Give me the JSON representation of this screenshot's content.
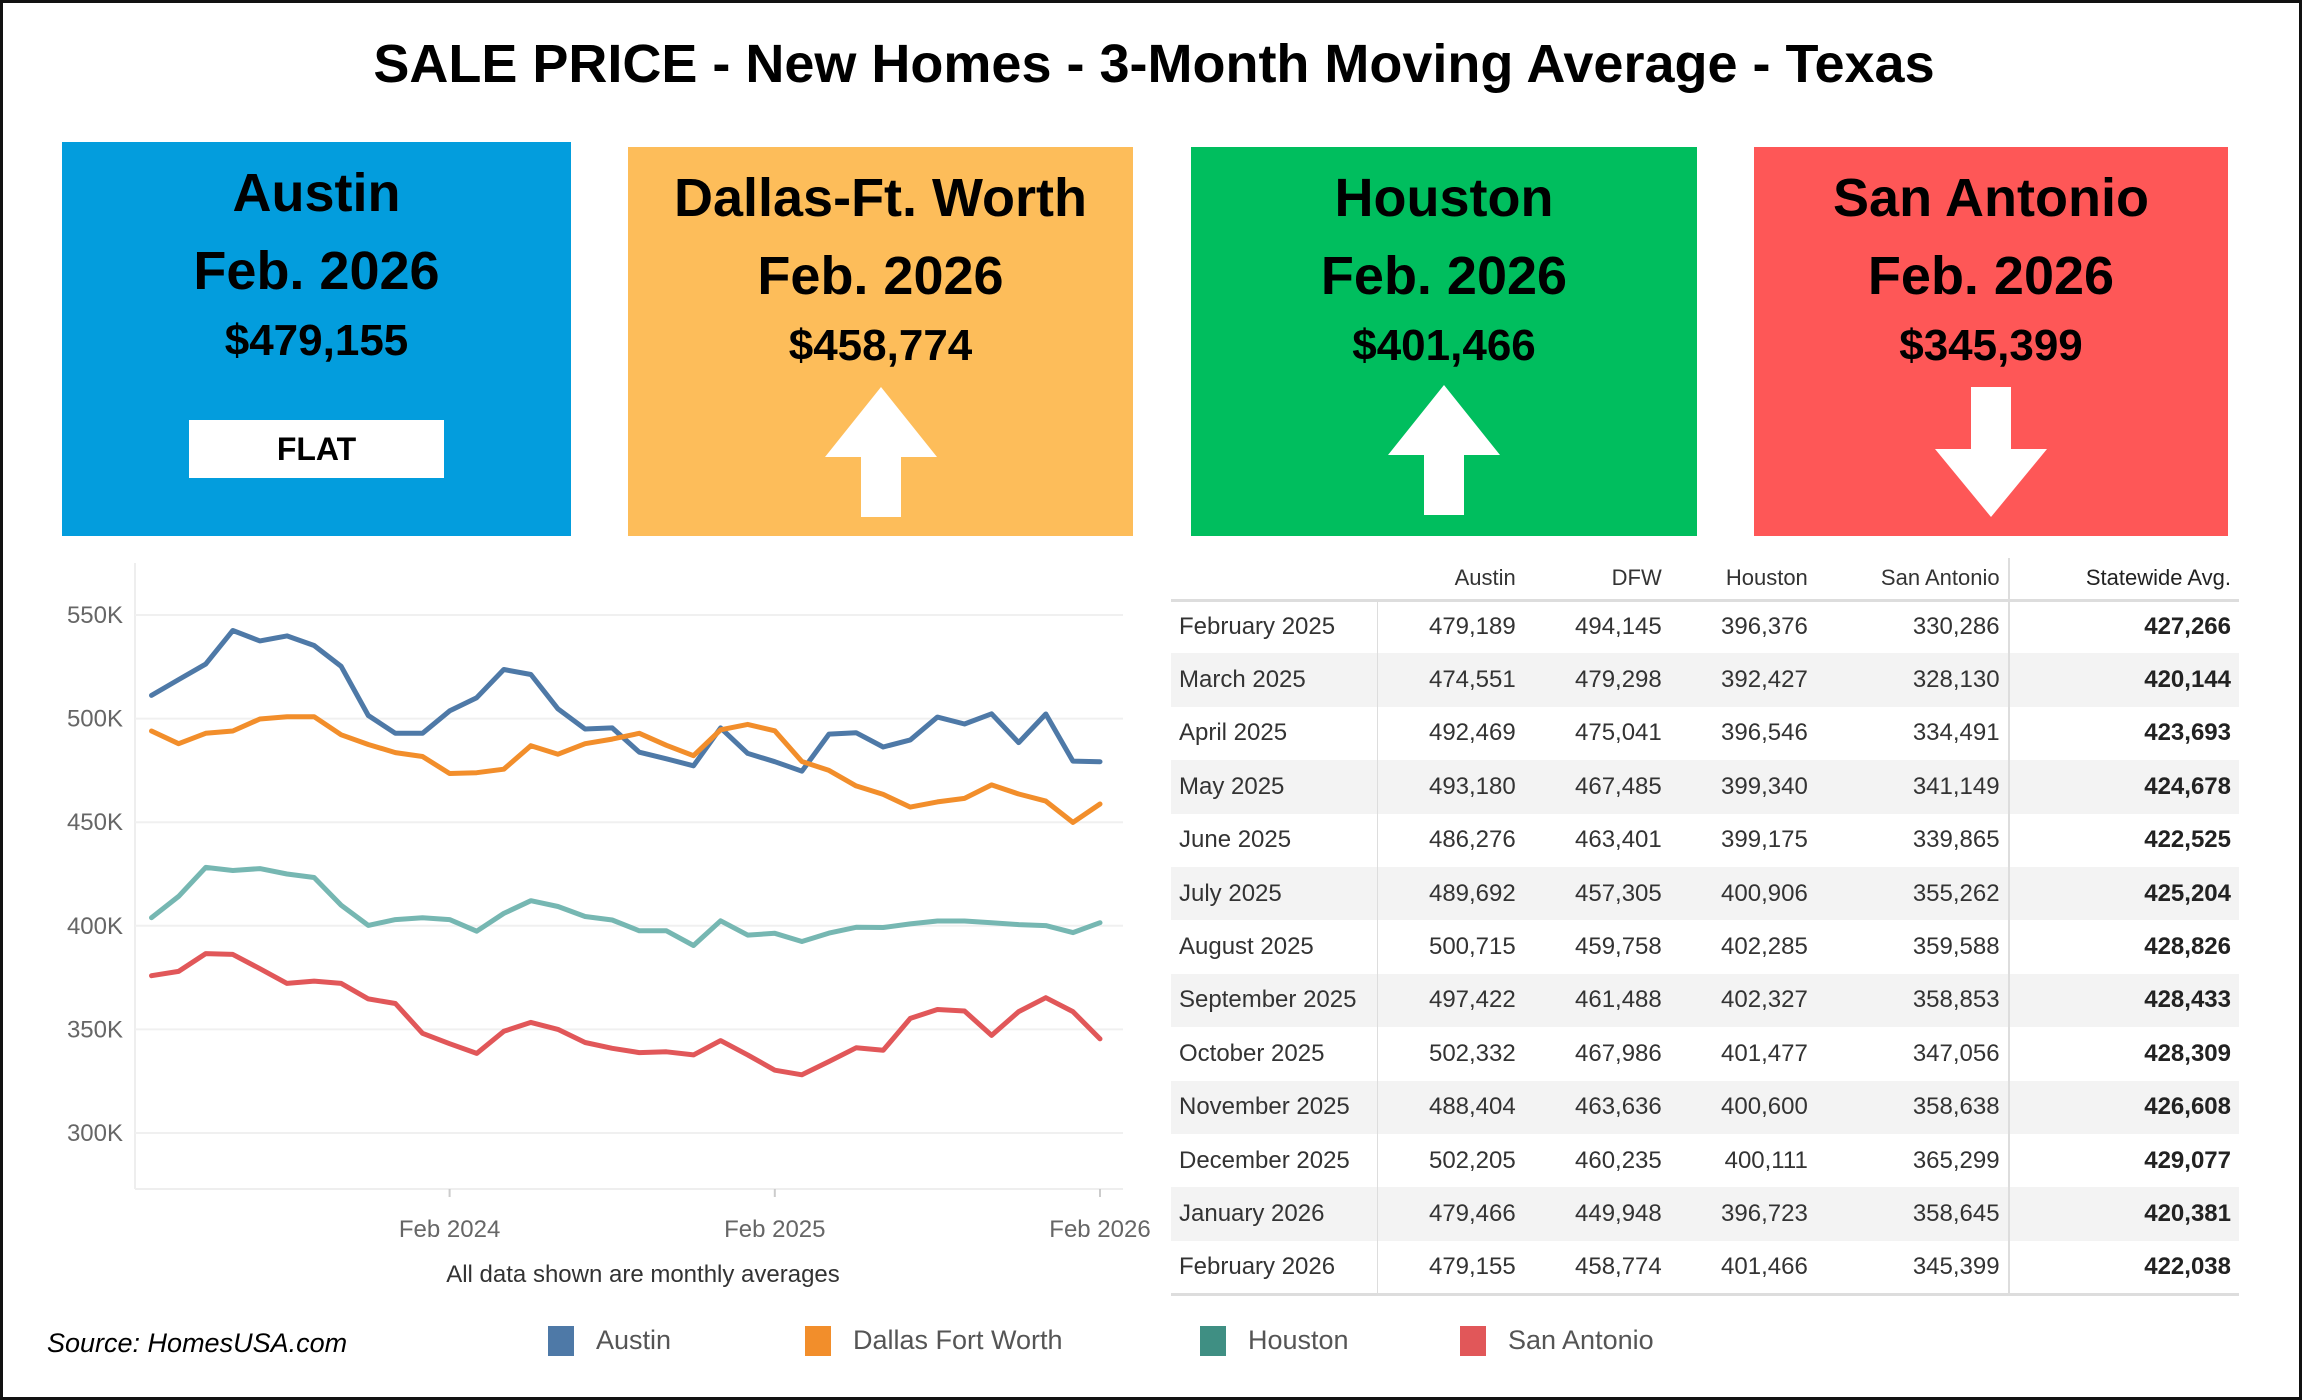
{
  "title": "SALE PRICE - New Homes - 3-Month Moving Average - Texas",
  "cards": [
    {
      "city": "Austin",
      "date": "Feb. 2026",
      "price": "$479,155",
      "trend": "FLAT",
      "color": "#039ddd"
    },
    {
      "city": "Dallas-Ft. Worth",
      "date": "Feb. 2026",
      "price": "$458,774",
      "trend": "up",
      "color": "#fdbd5a"
    },
    {
      "city": "Houston",
      "date": "Feb. 2026",
      "price": "$401,466",
      "trend": "up",
      "color": "#00be5e"
    },
    {
      "city": "San Antonio",
      "date": "Feb. 2026",
      "price": "$345,399",
      "trend": "down",
      "color": "#fe5757"
    }
  ],
  "chart_data": {
    "type": "line",
    "caption": "All data shown are monthly averages",
    "ylim": [
      270,
      570
    ],
    "yticks": [
      {
        "v": 300,
        "label": "300K"
      },
      {
        "v": 350,
        "label": "350K"
      },
      {
        "v": 400,
        "label": "400K"
      },
      {
        "v": 450,
        "label": "450K"
      },
      {
        "v": 500,
        "label": "500K"
      },
      {
        "v": 550,
        "label": "550K"
      }
    ],
    "xticks": [
      {
        "i": 11,
        "label": "Feb 2024"
      },
      {
        "i": 23,
        "label": "Feb 2025"
      },
      {
        "i": 35,
        "label": "Feb 2026"
      }
    ],
    "grid": true,
    "legend_position": "bottom",
    "x": [
      "Mar 2023",
      "Apr 2023",
      "May 2023",
      "Jun 2023",
      "Jul 2023",
      "Aug 2023",
      "Sep 2023",
      "Oct 2023",
      "Nov 2023",
      "Dec 2023",
      "Jan 2024",
      "Feb 2024",
      "Mar 2024",
      "Apr 2024",
      "May 2024",
      "Jun 2024",
      "Jul 2024",
      "Aug 2024",
      "Sep 2024",
      "Oct 2024",
      "Nov 2024",
      "Dec 2024",
      "Jan 2025",
      "Feb 2025",
      "Mar 2025",
      "Apr 2025",
      "May 2025",
      "Jun 2025",
      "Jul 2025",
      "Aug 2025",
      "Sep 2025",
      "Oct 2025",
      "Nov 2025",
      "Dec 2025",
      "Jan 2026",
      "Feb 2026"
    ],
    "series": [
      {
        "name": "Austin",
        "color": "#4e79a7",
        "values": [
          511.2,
          518.8,
          526.3,
          542.5,
          537.5,
          539.9,
          535.3,
          525.2,
          501.5,
          492.9,
          492.9,
          503.7,
          510.1,
          523.7,
          521.3,
          504.7,
          495.0,
          495.5,
          483.8,
          480.6,
          477.2,
          495.5,
          483.2,
          479.2,
          474.6,
          492.5,
          493.2,
          486.3,
          489.7,
          500.7,
          497.4,
          502.3,
          488.4,
          502.2,
          479.5,
          479.2
        ]
      },
      {
        "name": "Dallas Fort Worth",
        "color": "#f28e2b",
        "values": [
          494.0,
          487.9,
          492.9,
          494.0,
          499.8,
          500.9,
          500.9,
          492.2,
          487.5,
          483.6,
          481.7,
          473.5,
          473.9,
          475.6,
          486.9,
          482.8,
          487.9,
          490.1,
          492.9,
          487.1,
          482.1,
          494.6,
          497.2,
          494.1,
          479.3,
          475.0,
          467.5,
          463.4,
          457.3,
          459.8,
          461.5,
          468.0,
          463.6,
          460.2,
          449.9,
          458.8
        ]
      },
      {
        "name": "Houston",
        "color": "#76b7b2",
        "values": [
          403.9,
          414.2,
          428.2,
          426.7,
          427.6,
          425.0,
          423.3,
          409.9,
          400.2,
          403.0,
          403.9,
          403.0,
          397.4,
          406.0,
          412.1,
          409.3,
          404.5,
          402.8,
          397.6,
          397.6,
          390.5,
          402.4,
          395.5,
          396.4,
          392.4,
          396.5,
          399.3,
          399.2,
          400.9,
          402.3,
          402.3,
          401.5,
          400.6,
          400.1,
          396.7,
          401.5
        ]
      },
      {
        "name": "San Antonio",
        "color": "#e15759",
        "values": [
          375.9,
          378.0,
          386.6,
          386.2,
          379.3,
          372.2,
          373.3,
          372.2,
          364.7,
          362.5,
          348.1,
          343.1,
          338.4,
          349.1,
          353.4,
          350.0,
          343.7,
          340.9,
          338.8,
          339.2,
          337.7,
          344.6,
          337.7,
          330.3,
          328.1,
          334.5,
          341.1,
          339.9,
          355.3,
          359.6,
          358.9,
          347.1,
          358.6,
          365.3,
          358.6,
          345.4
        ]
      }
    ]
  },
  "table": {
    "headers": [
      "",
      "Austin",
      "DFW",
      "Houston",
      "San Antonio",
      "Statewide Avg."
    ],
    "rows": [
      [
        "February 2025",
        "479,189",
        "494,145",
        "396,376",
        "330,286",
        "427,266"
      ],
      [
        "March 2025",
        "474,551",
        "479,298",
        "392,427",
        "328,130",
        "420,144"
      ],
      [
        "April 2025",
        "492,469",
        "475,041",
        "396,546",
        "334,491",
        "423,693"
      ],
      [
        "May 2025",
        "493,180",
        "467,485",
        "399,340",
        "341,149",
        "424,678"
      ],
      [
        "June 2025",
        "486,276",
        "463,401",
        "399,175",
        "339,865",
        "422,525"
      ],
      [
        "July 2025",
        "489,692",
        "457,305",
        "400,906",
        "355,262",
        "425,204"
      ],
      [
        "August 2025",
        "500,715",
        "459,758",
        "402,285",
        "359,588",
        "428,826"
      ],
      [
        "September 2025",
        "497,422",
        "461,488",
        "402,327",
        "358,853",
        "428,433"
      ],
      [
        "October 2025",
        "502,332",
        "467,986",
        "401,477",
        "347,056",
        "428,309"
      ],
      [
        "November 2025",
        "488,404",
        "463,636",
        "400,600",
        "358,638",
        "426,608"
      ],
      [
        "December 2025",
        "502,205",
        "460,235",
        "400,111",
        "365,299",
        "429,077"
      ],
      [
        "January 2026",
        "479,466",
        "449,948",
        "396,723",
        "358,645",
        "420,381"
      ],
      [
        "February 2026",
        "479,155",
        "458,774",
        "401,466",
        "345,399",
        "422,038"
      ]
    ]
  },
  "source": "Source: HomesUSA.com"
}
